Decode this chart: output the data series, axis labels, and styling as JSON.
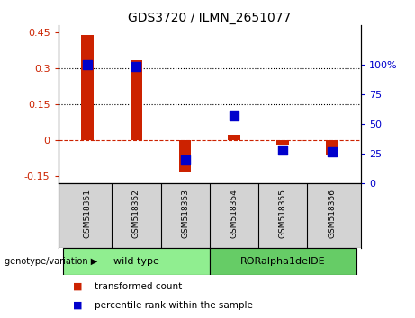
{
  "title": "GDS3720 / ILMN_2651077",
  "samples": [
    "GSM518351",
    "GSM518352",
    "GSM518353",
    "GSM518354",
    "GSM518355",
    "GSM518356"
  ],
  "red_values": [
    0.44,
    0.335,
    -0.13,
    0.025,
    -0.02,
    -0.065
  ],
  "blue_values": [
    100,
    99,
    20,
    57,
    28,
    27
  ],
  "ylim_left": [
    -0.18,
    0.48
  ],
  "ylim_right": [
    0,
    133.33
  ],
  "yticks_left": [
    -0.15,
    0,
    0.15,
    0.3,
    0.45
  ],
  "yticks_right": [
    0,
    25,
    50,
    75,
    100
  ],
  "ytick_right_labels": [
    "0",
    "25",
    "50",
    "75",
    "100%"
  ],
  "hlines": [
    0.15,
    0.3
  ],
  "left_axis_color": "#CC2200",
  "right_axis_color": "#0000CC",
  "bar_width": 0.25,
  "marker_size": 55,
  "legend_red": "transformed count",
  "legend_blue": "percentile rank within the sample",
  "genotype_label": "genotype/variation",
  "background_plot": "#ffffff",
  "background_label_area": "#d3d3d3",
  "group_spans": [
    {
      "label": "wild type",
      "start": 0,
      "end": 2,
      "color": "#90EE90"
    },
    {
      "label": "RORalpha1delDE",
      "start": 3,
      "end": 5,
      "color": "#66CC66"
    }
  ]
}
